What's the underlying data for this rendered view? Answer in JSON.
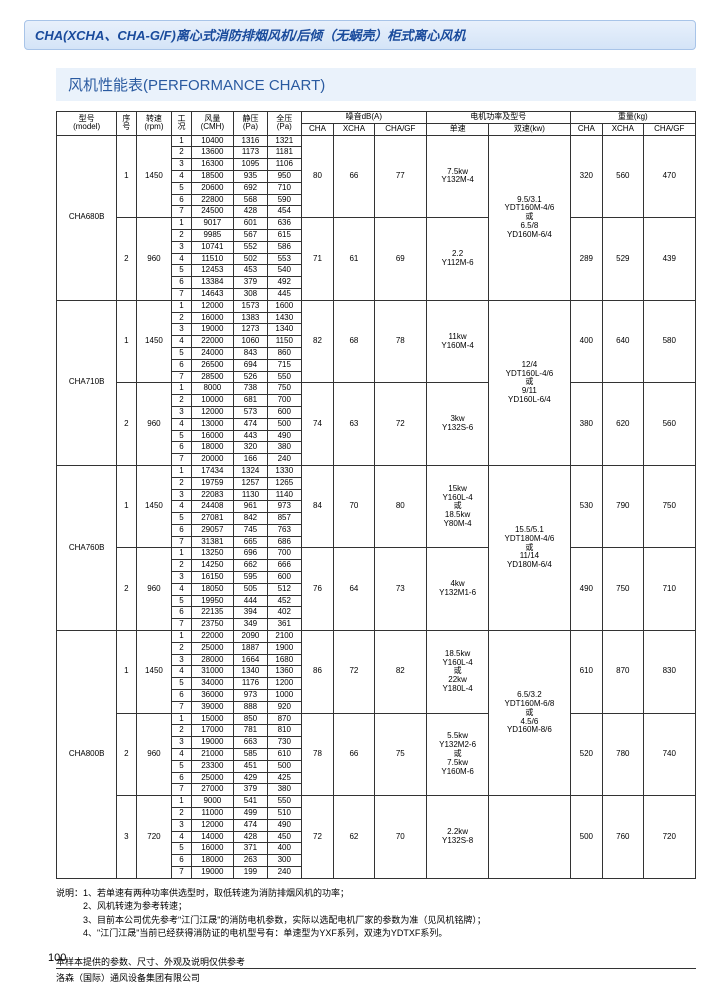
{
  "header": {
    "title": "CHA(XCHA、CHA-G/F)离心式消防排烟风机/后倾（无蜗壳）柜式离心风机"
  },
  "section": {
    "title": "风机性能表(PERFORMANCE CHART)"
  },
  "cols": {
    "model": "型号\n(model)",
    "seq": "序\n号",
    "rpm": "转速\n(rpm)",
    "cond": "工\n况",
    "cmh": "风量\n(CMH)",
    "sp": "静压\n(Pa)",
    "tp": "全压\n(Pa)",
    "noise": "噪音dB(A)",
    "cha": "CHA",
    "xcha": "XCHA",
    "chagf": "CHA/GF",
    "motor": "电机功率及型号",
    "single": "单速",
    "dual": "双速(kw)",
    "weight": "重量(kg)"
  },
  "models": [
    {
      "name": "CHA680B",
      "groups": [
        {
          "seq": "1",
          "rpm": "1450",
          "rows": [
            [
              "1",
              "10400",
              "1316",
              "1321"
            ],
            [
              "2",
              "13600",
              "1173",
              "1181"
            ],
            [
              "3",
              "16300",
              "1095",
              "1106"
            ],
            [
              "4",
              "18500",
              "935",
              "950"
            ],
            [
              "5",
              "20600",
              "692",
              "710"
            ],
            [
              "6",
              "22800",
              "568",
              "590"
            ],
            [
              "7",
              "24500",
              "428",
              "454"
            ]
          ],
          "n": [
            "80",
            "66",
            "77"
          ],
          "m1": "7.5kw\nY132M-4",
          "w": [
            "320",
            "560",
            "470"
          ]
        },
        {
          "seq": "2",
          "rpm": "960",
          "rows": [
            [
              "1",
              "9017",
              "601",
              "636"
            ],
            [
              "2",
              "9985",
              "567",
              "615"
            ],
            [
              "3",
              "10741",
              "552",
              "586"
            ],
            [
              "4",
              "11510",
              "502",
              "553"
            ],
            [
              "5",
              "12453",
              "453",
              "540"
            ],
            [
              "6",
              "13384",
              "379",
              "492"
            ],
            [
              "7",
              "14643",
              "308",
              "445"
            ]
          ],
          "n": [
            "71",
            "61",
            "69"
          ],
          "m1": "2.2\nY112M-6",
          "w": [
            "289",
            "529",
            "439"
          ]
        }
      ],
      "dual": "9.5/3.1\nYDT160M-4/6\n或\n6.5/8\nYD160M-6/4"
    },
    {
      "name": "CHA710B",
      "groups": [
        {
          "seq": "1",
          "rpm": "1450",
          "rows": [
            [
              "1",
              "12000",
              "1573",
              "1600"
            ],
            [
              "2",
              "16000",
              "1383",
              "1430"
            ],
            [
              "3",
              "19000",
              "1273",
              "1340"
            ],
            [
              "4",
              "22000",
              "1060",
              "1150"
            ],
            [
              "5",
              "24000",
              "843",
              "860"
            ],
            [
              "6",
              "26500",
              "694",
              "715"
            ],
            [
              "7",
              "28500",
              "526",
              "550"
            ]
          ],
          "n": [
            "82",
            "68",
            "78"
          ],
          "m1": "11kw\nY160M-4",
          "w": [
            "400",
            "640",
            "580"
          ]
        },
        {
          "seq": "2",
          "rpm": "960",
          "rows": [
            [
              "1",
              "8000",
              "738",
              "750"
            ],
            [
              "2",
              "10000",
              "681",
              "700"
            ],
            [
              "3",
              "12000",
              "573",
              "600"
            ],
            [
              "4",
              "13000",
              "474",
              "500"
            ],
            [
              "5",
              "16000",
              "443",
              "490"
            ],
            [
              "6",
              "18000",
              "320",
              "380"
            ],
            [
              "7",
              "20000",
              "166",
              "240"
            ]
          ],
          "n": [
            "74",
            "63",
            "72"
          ],
          "m1": "3kw\nY132S-6",
          "w": [
            "380",
            "620",
            "560"
          ]
        }
      ],
      "dual": "12/4\nYDT160L-4/6\n或\n9/11\nYD160L-6/4"
    },
    {
      "name": "CHA760B",
      "groups": [
        {
          "seq": "1",
          "rpm": "1450",
          "rows": [
            [
              "1",
              "17434",
              "1324",
              "1330"
            ],
            [
              "2",
              "19759",
              "1257",
              "1265"
            ],
            [
              "3",
              "22083",
              "1130",
              "1140"
            ],
            [
              "4",
              "24408",
              "961",
              "973"
            ],
            [
              "5",
              "27081",
              "842",
              "857"
            ],
            [
              "6",
              "29057",
              "745",
              "763"
            ],
            [
              "7",
              "31381",
              "665",
              "686"
            ]
          ],
          "n": [
            "84",
            "70",
            "80"
          ],
          "m1": "15kw\nY160L-4\n或\n18.5kw\nY80M-4",
          "w": [
            "530",
            "790",
            "750"
          ]
        },
        {
          "seq": "2",
          "rpm": "960",
          "rows": [
            [
              "1",
              "13250",
              "696",
              "700"
            ],
            [
              "2",
              "14250",
              "662",
              "666"
            ],
            [
              "3",
              "16150",
              "595",
              "600"
            ],
            [
              "4",
              "18050",
              "505",
              "512"
            ],
            [
              "5",
              "19950",
              "444",
              "452"
            ],
            [
              "6",
              "22135",
              "394",
              "402"
            ],
            [
              "7",
              "23750",
              "349",
              "361"
            ]
          ],
          "n": [
            "76",
            "64",
            "73"
          ],
          "m1": "4kw\nY132M1-6",
          "w": [
            "490",
            "750",
            "710"
          ]
        }
      ],
      "dual": "15.5/5.1\nYDT180M-4/6\n或\n11/14\nYD180M-6/4"
    },
    {
      "name": "CHA800B",
      "groups": [
        {
          "seq": "1",
          "rpm": "1450",
          "rows": [
            [
              "1",
              "22000",
              "2090",
              "2100"
            ],
            [
              "2",
              "25000",
              "1887",
              "1900"
            ],
            [
              "3",
              "28000",
              "1664",
              "1680"
            ],
            [
              "4",
              "31000",
              "1340",
              "1360"
            ],
            [
              "5",
              "34000",
              "1176",
              "1200"
            ],
            [
              "6",
              "36000",
              "973",
              "1000"
            ],
            [
              "7",
              "39000",
              "888",
              "920"
            ]
          ],
          "n": [
            "86",
            "72",
            "82"
          ],
          "m1": "18.5kw\nY160L-4\n或\n22kw\nY180L-4",
          "w": [
            "610",
            "870",
            "830"
          ]
        },
        {
          "seq": "2",
          "rpm": "960",
          "rows": [
            [
              "1",
              "15000",
              "850",
              "870"
            ],
            [
              "2",
              "17000",
              "781",
              "810"
            ],
            [
              "3",
              "19000",
              "663",
              "730"
            ],
            [
              "4",
              "21000",
              "585",
              "610"
            ],
            [
              "5",
              "23300",
              "451",
              "500"
            ],
            [
              "6",
              "25000",
              "429",
              "425"
            ],
            [
              "7",
              "27000",
              "379",
              "380"
            ]
          ],
          "n": [
            "78",
            "66",
            "75"
          ],
          "m1": "5.5kw\nY132M2-6\n或\n7.5kw\nY160M-6",
          "w": [
            "520",
            "780",
            "740"
          ]
        },
        {
          "seq": "3",
          "rpm": "720",
          "rows": [
            [
              "1",
              "9000",
              "541",
              "550"
            ],
            [
              "2",
              "11000",
              "499",
              "510"
            ],
            [
              "3",
              "12000",
              "474",
              "490"
            ],
            [
              "4",
              "14000",
              "428",
              "450"
            ],
            [
              "5",
              "16000",
              "371",
              "400"
            ],
            [
              "6",
              "18000",
              "263",
              "300"
            ],
            [
              "7",
              "19000",
              "199",
              "240"
            ]
          ],
          "n": [
            "72",
            "62",
            "70"
          ],
          "m1": "2.2kw\nY132S-8",
          "w": [
            "500",
            "760",
            "720"
          ]
        }
      ],
      "dual": "6.5/3.2\nYDT160M-6/8\n或\n4.5/6\nYD160M-8/6"
    }
  ],
  "notes": {
    "label": "说明：",
    "items": [
      "1、若单速有两种功率供选型时，取低转速为消防排烟风机的功率；",
      "2、风机转速为参考转速；",
      "3、目前本公司优先参考\"江门江晟\"的消防电机参数，实际以选配电机厂家的参数为准（见风机铭牌）；",
      "4、\"江门江晟\"当前已经获得消防证的电机型号有：单速型为YXF系列，双速为YDTXF系列。"
    ]
  },
  "footer": {
    "note": "本样本提供的参数、尺寸、外观及说明仅供参考",
    "company": "洛森（国际）通风设备集团有限公司",
    "page": "100"
  }
}
